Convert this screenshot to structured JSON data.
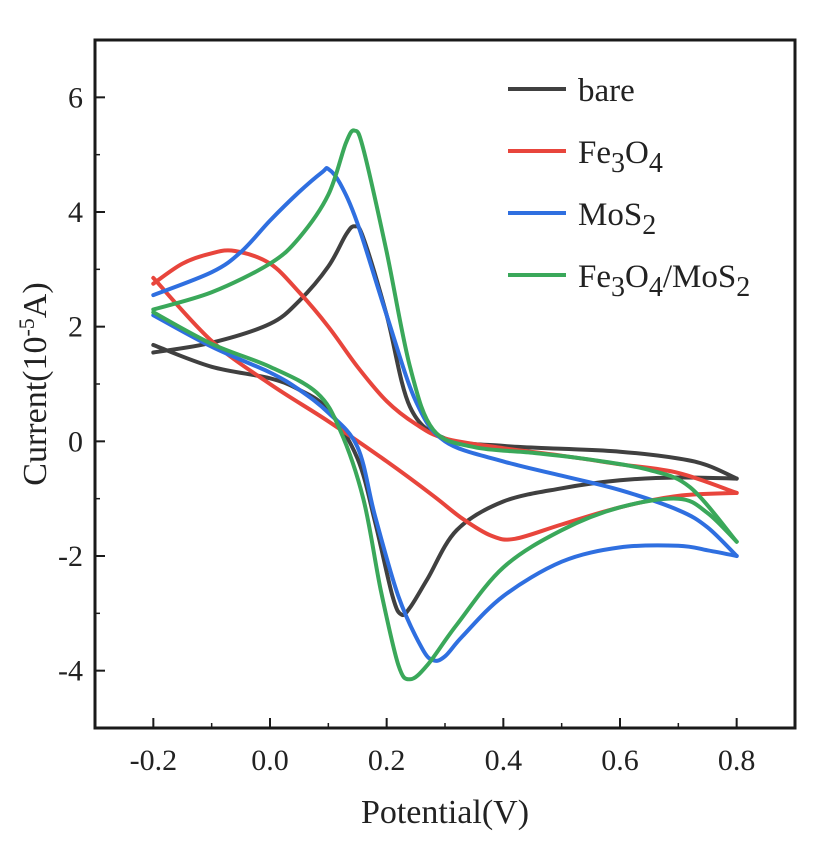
{
  "chart_data": {
    "type": "line",
    "title": "",
    "xlabel": "Potential(V)",
    "ylabel_parts": {
      "pre": "Current(10",
      "exp": "-5",
      "post": "A)"
    },
    "xlim": [
      -0.3,
      0.9
    ],
    "ylim": [
      -5,
      7
    ],
    "xticks": [
      -0.2,
      0.0,
      0.2,
      0.4,
      0.6,
      0.8
    ],
    "xtick_labels": [
      "-0.2",
      "0.0",
      "0.2",
      "0.4",
      "0.6",
      "0.8"
    ],
    "yticks": [
      -4,
      -2,
      0,
      2,
      4,
      6
    ],
    "ytick_labels": [
      "-4",
      "-2",
      "0",
      "2",
      "4",
      "6"
    ],
    "legend_position": "top-right",
    "series": [
      {
        "name": "bare",
        "legend_parts": [
          {
            "t": "bare",
            "sub": false
          }
        ],
        "color": "#404040",
        "forward": [
          [
            -0.2,
            1.55
          ],
          [
            -0.1,
            1.72
          ],
          [
            0.0,
            2.05
          ],
          [
            0.05,
            2.45
          ],
          [
            0.1,
            3.05
          ],
          [
            0.13,
            3.6
          ],
          [
            0.145,
            3.75
          ],
          [
            0.16,
            3.55
          ],
          [
            0.2,
            2.2
          ],
          [
            0.24,
            0.6
          ],
          [
            0.3,
            0.05
          ],
          [
            0.4,
            -0.08
          ],
          [
            0.5,
            -0.13
          ],
          [
            0.6,
            -0.18
          ],
          [
            0.7,
            -0.3
          ],
          [
            0.75,
            -0.42
          ],
          [
            0.8,
            -0.65
          ]
        ],
        "reverse": [
          [
            0.8,
            -0.65
          ],
          [
            0.7,
            -0.63
          ],
          [
            0.6,
            -0.68
          ],
          [
            0.5,
            -0.82
          ],
          [
            0.4,
            -1.05
          ],
          [
            0.32,
            -1.55
          ],
          [
            0.27,
            -2.4
          ],
          [
            0.24,
            -2.9
          ],
          [
            0.225,
            -3.02
          ],
          [
            0.21,
            -2.7
          ],
          [
            0.18,
            -1.4
          ],
          [
            0.15,
            -0.3
          ],
          [
            0.1,
            0.55
          ],
          [
            0.05,
            0.9
          ],
          [
            0.0,
            1.1
          ],
          [
            -0.1,
            1.3
          ],
          [
            -0.2,
            1.68
          ]
        ]
      },
      {
        "name": "Fe3O4",
        "legend_parts": [
          {
            "t": "Fe",
            "sub": false
          },
          {
            "t": "3",
            "sub": true
          },
          {
            "t": "O",
            "sub": false
          },
          {
            "t": "4",
            "sub": true
          }
        ],
        "color": "#e8453c",
        "forward": [
          [
            -0.2,
            2.75
          ],
          [
            -0.15,
            3.1
          ],
          [
            -0.1,
            3.28
          ],
          [
            -0.06,
            3.32
          ],
          [
            0.0,
            3.1
          ],
          [
            0.05,
            2.6
          ],
          [
            0.1,
            2.0
          ],
          [
            0.15,
            1.3
          ],
          [
            0.2,
            0.7
          ],
          [
            0.25,
            0.3
          ],
          [
            0.3,
            0.05
          ],
          [
            0.4,
            -0.12
          ],
          [
            0.5,
            -0.25
          ],
          [
            0.6,
            -0.4
          ],
          [
            0.7,
            -0.55
          ],
          [
            0.8,
            -0.9
          ]
        ],
        "reverse": [
          [
            0.8,
            -0.9
          ],
          [
            0.7,
            -0.95
          ],
          [
            0.6,
            -1.15
          ],
          [
            0.5,
            -1.45
          ],
          [
            0.42,
            -1.7
          ],
          [
            0.38,
            -1.65
          ],
          [
            0.33,
            -1.35
          ],
          [
            0.28,
            -0.95
          ],
          [
            0.2,
            -0.35
          ],
          [
            0.1,
            0.35
          ],
          [
            0.0,
            1.0
          ],
          [
            -0.1,
            1.75
          ],
          [
            -0.2,
            2.85
          ]
        ]
      },
      {
        "name": "MoS2",
        "legend_parts": [
          {
            "t": "MoS",
            "sub": false
          },
          {
            "t": "2",
            "sub": true
          }
        ],
        "color": "#2f6fe0",
        "forward": [
          [
            -0.2,
            2.55
          ],
          [
            -0.1,
            2.95
          ],
          [
            -0.05,
            3.3
          ],
          [
            0.0,
            3.85
          ],
          [
            0.05,
            4.35
          ],
          [
            0.09,
            4.7
          ],
          [
            0.1,
            4.75
          ],
          [
            0.12,
            4.5
          ],
          [
            0.15,
            3.8
          ],
          [
            0.2,
            2.2
          ],
          [
            0.25,
            0.7
          ],
          [
            0.3,
            0.0
          ],
          [
            0.4,
            -0.35
          ],
          [
            0.5,
            -0.6
          ],
          [
            0.6,
            -0.85
          ],
          [
            0.7,
            -1.2
          ],
          [
            0.75,
            -1.5
          ],
          [
            0.8,
            -2.0
          ]
        ],
        "reverse": [
          [
            0.8,
            -2.0
          ],
          [
            0.75,
            -1.9
          ],
          [
            0.7,
            -1.82
          ],
          [
            0.6,
            -1.85
          ],
          [
            0.5,
            -2.1
          ],
          [
            0.4,
            -2.7
          ],
          [
            0.33,
            -3.4
          ],
          [
            0.3,
            -3.75
          ],
          [
            0.28,
            -3.82
          ],
          [
            0.26,
            -3.6
          ],
          [
            0.22,
            -2.7
          ],
          [
            0.18,
            -1.3
          ],
          [
            0.15,
            -0.1
          ],
          [
            0.1,
            0.5
          ],
          [
            0.05,
            0.9
          ],
          [
            0.0,
            1.2
          ],
          [
            -0.1,
            1.65
          ],
          [
            -0.2,
            2.2
          ]
        ]
      },
      {
        "name": "Fe3O4/MoS2",
        "legend_parts": [
          {
            "t": "Fe",
            "sub": false
          },
          {
            "t": "3",
            "sub": true
          },
          {
            "t": "O",
            "sub": false
          },
          {
            "t": "4",
            "sub": true
          },
          {
            "t": "/MoS",
            "sub": false
          },
          {
            "t": "2",
            "sub": true
          }
        ],
        "color": "#3aa85a",
        "forward": [
          [
            -0.2,
            2.3
          ],
          [
            -0.1,
            2.6
          ],
          [
            0.0,
            3.1
          ],
          [
            0.05,
            3.55
          ],
          [
            0.1,
            4.3
          ],
          [
            0.13,
            5.2
          ],
          [
            0.145,
            5.42
          ],
          [
            0.16,
            5.1
          ],
          [
            0.2,
            3.3
          ],
          [
            0.24,
            1.3
          ],
          [
            0.28,
            0.2
          ],
          [
            0.35,
            -0.1
          ],
          [
            0.45,
            -0.2
          ],
          [
            0.55,
            -0.32
          ],
          [
            0.65,
            -0.5
          ],
          [
            0.72,
            -0.8
          ],
          [
            0.8,
            -1.75
          ]
        ],
        "reverse": [
          [
            0.8,
            -1.75
          ],
          [
            0.75,
            -1.25
          ],
          [
            0.7,
            -1.0
          ],
          [
            0.6,
            -1.15
          ],
          [
            0.5,
            -1.55
          ],
          [
            0.4,
            -2.2
          ],
          [
            0.32,
            -3.2
          ],
          [
            0.27,
            -3.9
          ],
          [
            0.24,
            -4.15
          ],
          [
            0.22,
            -3.9
          ],
          [
            0.19,
            -2.6
          ],
          [
            0.16,
            -1.0
          ],
          [
            0.12,
            0.2
          ],
          [
            0.08,
            0.85
          ],
          [
            0.0,
            1.3
          ],
          [
            -0.1,
            1.7
          ],
          [
            -0.2,
            2.25
          ]
        ]
      }
    ]
  }
}
